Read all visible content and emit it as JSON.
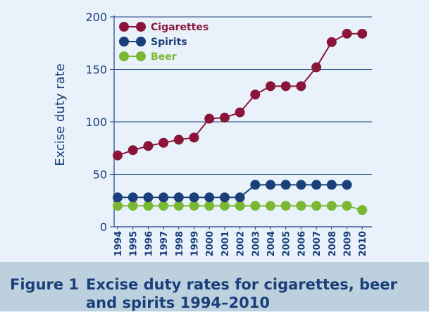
{
  "chart_data": {
    "type": "line",
    "title": "",
    "xlabel": "",
    "ylabel": "Excise duty rate",
    "ylim": [
      0,
      200
    ],
    "yticks": [
      0,
      50,
      100,
      150,
      200
    ],
    "grid": true,
    "legend_position": "top-left",
    "x": [
      "1994",
      "1995",
      "1996",
      "1997",
      "1998",
      "1999",
      "2000",
      "2001",
      "2002",
      "2003",
      "2004",
      "2005",
      "2006",
      "2007",
      "2008",
      "2009",
      "2010"
    ],
    "series": [
      {
        "name": "Cigarettes",
        "color": "#8a1538",
        "values": [
          68,
          73,
          77,
          80,
          83,
          85,
          103,
          104,
          109,
          126,
          134,
          134,
          134,
          152,
          176,
          184,
          184
        ]
      },
      {
        "name": "Spirits",
        "color": "#1b3f7a",
        "values": [
          28,
          28,
          28,
          28,
          28,
          28,
          28,
          28,
          28,
          40,
          40,
          40,
          40,
          40,
          40,
          40,
          null
        ]
      },
      {
        "name": "Beer",
        "color": "#7ab833",
        "values": [
          20,
          20,
          20,
          20,
          20,
          20,
          20,
          20,
          20,
          20,
          20,
          20,
          20,
          20,
          20,
          20,
          16
        ]
      }
    ]
  },
  "caption": {
    "label": "Figure 1",
    "text": "Excise duty rates for cigarettes, beer and spirits 1994–2010"
  }
}
